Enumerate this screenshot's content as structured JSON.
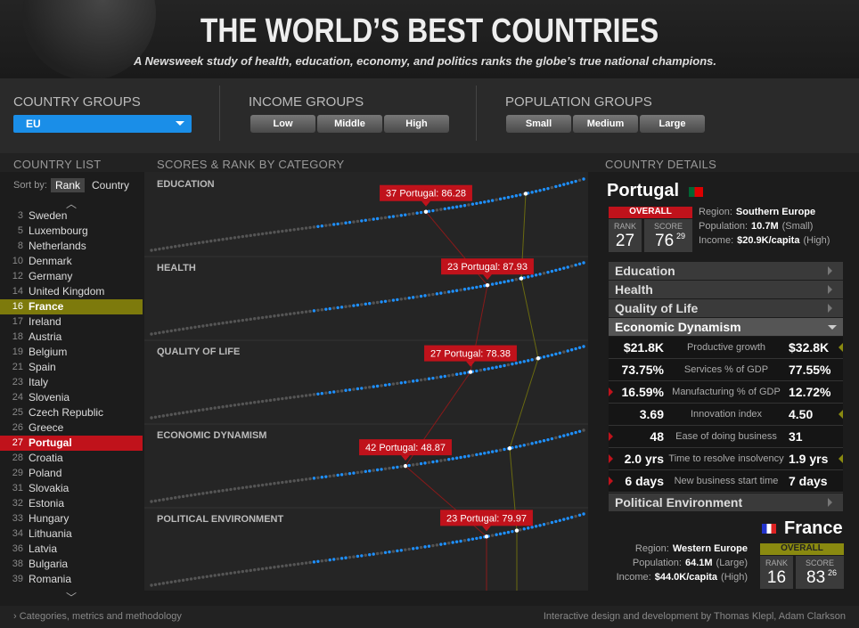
{
  "header": {
    "title": "THE WORLD’S BEST COUNTRIES",
    "subtitle": "A Newsweek study of health, education, economy, and politics ranks the globe’s true national champions."
  },
  "filters": {
    "country_groups": {
      "label": "COUNTRY GROUPS",
      "selected": "EU"
    },
    "income_groups": {
      "label": "INCOME GROUPS",
      "options": [
        "Low",
        "Middle",
        "High"
      ]
    },
    "population_groups": {
      "label": "POPULATION GROUPS",
      "options": [
        "Small",
        "Medium",
        "Large"
      ]
    }
  },
  "country_list": {
    "label": "COUNTRY LIST",
    "sort_label": "Sort by:",
    "sort_options": [
      "Rank",
      "Country"
    ],
    "items": [
      {
        "rank": 3,
        "name": "Sweden"
      },
      {
        "rank": 5,
        "name": "Luxembourg"
      },
      {
        "rank": 8,
        "name": "Netherlands"
      },
      {
        "rank": 10,
        "name": "Denmark"
      },
      {
        "rank": 12,
        "name": "Germany"
      },
      {
        "rank": 14,
        "name": "United Kingdom"
      },
      {
        "rank": 16,
        "name": "France"
      },
      {
        "rank": 17,
        "name": "Ireland"
      },
      {
        "rank": 18,
        "name": "Austria"
      },
      {
        "rank": 19,
        "name": "Belgium"
      },
      {
        "rank": 21,
        "name": "Spain"
      },
      {
        "rank": 23,
        "name": "Italy"
      },
      {
        "rank": 24,
        "name": "Slovenia"
      },
      {
        "rank": 25,
        "name": "Czech Republic"
      },
      {
        "rank": 26,
        "name": "Greece"
      },
      {
        "rank": 27,
        "name": "Portugal"
      },
      {
        "rank": 28,
        "name": "Croatia"
      },
      {
        "rank": 29,
        "name": "Poland"
      },
      {
        "rank": 31,
        "name": "Slovakia"
      },
      {
        "rank": 32,
        "name": "Estonia"
      },
      {
        "rank": 33,
        "name": "Hungary"
      },
      {
        "rank": 34,
        "name": "Lithuania"
      },
      {
        "rank": 36,
        "name": "Latvia"
      },
      {
        "rank": 38,
        "name": "Bulgaria"
      },
      {
        "rank": 39,
        "name": "Romania"
      }
    ]
  },
  "scores": {
    "label": "SCORES & RANK BY CATEGORY",
    "categories": [
      {
        "name": "EDUCATION",
        "callout": "37 Portugal: 86.28"
      },
      {
        "name": "HEALTH",
        "callout": "23 Portugal: 87.93"
      },
      {
        "name": "QUALITY OF LIFE",
        "callout": "27 Portugal: 78.38"
      },
      {
        "name": "ECONOMIC DYNAMISM",
        "callout": "42 Portugal: 48.87"
      },
      {
        "name": "POLITICAL ENVIRONMENT",
        "callout": "23 Portugal: 79.97"
      }
    ]
  },
  "details": {
    "label": "COUNTRY DETAILS",
    "primary": {
      "name": "Portugal",
      "overall": "OVERALL",
      "rank_label": "RANK",
      "rank": 27,
      "score_label": "SCORE",
      "score": 76,
      "score_decimal": 29,
      "region_label": "Region:",
      "region": "Southern Europe",
      "population_label": "Population:",
      "population": "10.7M",
      "population_group": "(Small)",
      "income_label": "Income:",
      "income": "$20.9K/capita",
      "income_group": "(High)"
    },
    "sections": [
      "Education",
      "Health",
      "Quality of Life",
      "Economic Dynamism",
      "Political Environment"
    ],
    "metrics": [
      {
        "left": "$21.8K",
        "label": "Productive growth",
        "right": "$32.8K"
      },
      {
        "left": "73.75%",
        "label": "Services % of GDP",
        "right": "77.55%"
      },
      {
        "left": "16.59%",
        "label": "Manufacturing % of GDP",
        "right": "12.72%"
      },
      {
        "left": "3.69",
        "label": "Innovation index",
        "right": "4.50"
      },
      {
        "left": "48",
        "label": "Ease of doing business",
        "right": "31"
      },
      {
        "left": "2.0 yrs",
        "label": "Time to resolve insolvency",
        "right": "1.9 yrs"
      },
      {
        "left": "6 days",
        "label": "New business start time",
        "right": "7 days"
      }
    ],
    "secondary": {
      "name": "France",
      "overall": "OVERALL",
      "rank_label": "RANK",
      "rank": 16,
      "score_label": "SCORE",
      "score": 83,
      "score_decimal": 26,
      "region_label": "Region:",
      "region": "Western Europe",
      "population_label": "Population:",
      "population": "64.1M",
      "population_group": "(Large)",
      "income_label": "Income:",
      "income": "$44.0K/capita",
      "income_group": "(High)"
    }
  },
  "footer": {
    "left": "› Categories, metrics and methodology",
    "right": "Interactive design and development by Thomas Klepl, Adam Clarkson"
  }
}
